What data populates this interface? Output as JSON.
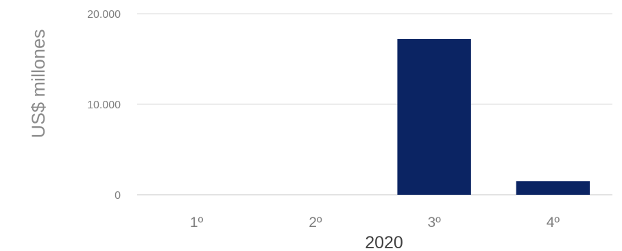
{
  "chart_data": {
    "type": "bar",
    "ylabel": "US$ millones",
    "xlabel": "2020",
    "categories": [
      "1º",
      "2º",
      "3º",
      "4º"
    ],
    "values": [
      0,
      0,
      17200,
      1500
    ],
    "ylim": [
      0,
      20000
    ],
    "yticks": [
      {
        "value": 0,
        "label": "0"
      },
      {
        "value": 10000,
        "label": "10.000"
      },
      {
        "value": 20000,
        "label": "20.000"
      }
    ],
    "grid": true,
    "legend": "none",
    "colors": {
      "bar": "#0b2463",
      "grid": "#e6e6e6"
    }
  }
}
